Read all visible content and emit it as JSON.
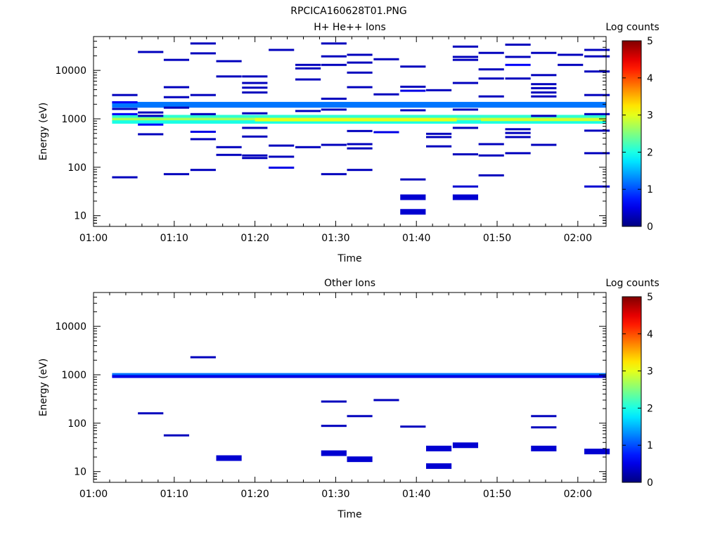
{
  "figure_title": "RPCICA160628T01.PNG",
  "chart_data": [
    {
      "type": "heatmap",
      "title": "H+ He++ Ions",
      "xlabel": "Time",
      "ylabel": "Energy (eV)",
      "x_ticks": [
        "01:00",
        "01:10",
        "01:20",
        "01:30",
        "01:40",
        "01:50",
        "02:00"
      ],
      "xlim_minutes": [
        0,
        63.5
      ],
      "ylim": [
        6,
        50000
      ],
      "y_scale": "log",
      "y_ticks": [
        "10",
        "100",
        "1000",
        "10000"
      ],
      "colorbar": {
        "label": "Log counts",
        "range": [
          0,
          5
        ],
        "ticks": [
          "0",
          "1",
          "2",
          "3",
          "4",
          "5"
        ]
      },
      "bands": [
        {
          "t0": 2.3,
          "t1": 63.5,
          "e": 1950,
          "h": 0.06,
          "level": 1.2
        },
        {
          "t0": 2.3,
          "t1": 63.5,
          "e": 1100,
          "h": 0.04,
          "level": 2.1
        },
        {
          "t0": 2.3,
          "t1": 63.5,
          "e": 960,
          "h": 0.04,
          "level": 2.7
        },
        {
          "t0": 2.3,
          "t1": 63.5,
          "e": 860,
          "h": 0.035,
          "level": 2.0
        },
        {
          "t0": 20,
          "t1": 45,
          "e": 960,
          "h": 0.035,
          "level": 3.0
        },
        {
          "t0": 48,
          "t1": 63.5,
          "e": 960,
          "h": 0.03,
          "level": 2.9
        }
      ],
      "points": [
        {
          "t": 2.3,
          "e": 62,
          "level": 0
        },
        {
          "t": 2.3,
          "e": 1600,
          "level": 0
        },
        {
          "t": 2.3,
          "e": 1250,
          "level": 0.3
        },
        {
          "t": 2.3,
          "e": 3100,
          "level": 0
        },
        {
          "t": 2.3,
          "e": 2200,
          "level": 0.3
        },
        {
          "t": 5.5,
          "e": 24000,
          "level": 0
        },
        {
          "t": 5.5,
          "e": 1350,
          "level": 0
        },
        {
          "t": 5.5,
          "e": 1150,
          "level": 0
        },
        {
          "t": 5.5,
          "e": 760,
          "level": 0.3
        },
        {
          "t": 5.5,
          "e": 480,
          "level": 0
        },
        {
          "t": 8.7,
          "e": 16500,
          "level": 0
        },
        {
          "t": 8.7,
          "e": 4500,
          "level": 0
        },
        {
          "t": 8.7,
          "e": 2800,
          "level": 0
        },
        {
          "t": 8.7,
          "e": 1700,
          "level": 0
        },
        {
          "t": 8.7,
          "e": 72,
          "level": 0
        },
        {
          "t": 12,
          "e": 36000,
          "level": 0
        },
        {
          "t": 12,
          "e": 22500,
          "level": 0
        },
        {
          "t": 12,
          "e": 3100,
          "level": 0
        },
        {
          "t": 12,
          "e": 1250,
          "level": 0
        },
        {
          "t": 12,
          "e": 540,
          "level": 0.2
        },
        {
          "t": 12,
          "e": 380,
          "level": 0
        },
        {
          "t": 12,
          "e": 88,
          "level": 0
        },
        {
          "t": 15.2,
          "e": 15500,
          "level": 0
        },
        {
          "t": 15.2,
          "e": 7500,
          "level": 0
        },
        {
          "t": 15.2,
          "e": 260,
          "level": 0
        },
        {
          "t": 15.2,
          "e": 180,
          "level": 0
        },
        {
          "t": 18.4,
          "e": 7500,
          "level": 0
        },
        {
          "t": 18.4,
          "e": 5500,
          "level": 0
        },
        {
          "t": 18.4,
          "e": 4400,
          "level": 0
        },
        {
          "t": 18.4,
          "e": 3500,
          "level": 0
        },
        {
          "t": 18.4,
          "e": 1300,
          "level": 0
        },
        {
          "t": 18.4,
          "e": 650,
          "level": 0
        },
        {
          "t": 18.4,
          "e": 430,
          "level": 0
        },
        {
          "t": 18.4,
          "e": 175,
          "level": 0
        },
        {
          "t": 18.4,
          "e": 155,
          "level": 0
        },
        {
          "t": 21.7,
          "e": 26500,
          "level": 0
        },
        {
          "t": 21.7,
          "e": 280,
          "level": 0
        },
        {
          "t": 21.7,
          "e": 165,
          "level": 0
        },
        {
          "t": 21.7,
          "e": 98,
          "level": 0.2
        },
        {
          "t": 25,
          "e": 13000,
          "level": 0
        },
        {
          "t": 25,
          "e": 11000,
          "level": 0
        },
        {
          "t": 25,
          "e": 6500,
          "level": 0
        },
        {
          "t": 25,
          "e": 1450,
          "level": 0
        },
        {
          "t": 25,
          "e": 260,
          "level": 0
        },
        {
          "t": 28.2,
          "e": 36000,
          "level": 0
        },
        {
          "t": 28.2,
          "e": 19500,
          "level": 0
        },
        {
          "t": 28.2,
          "e": 13000,
          "level": 0
        },
        {
          "t": 28.2,
          "e": 2600,
          "level": 0
        },
        {
          "t": 28.2,
          "e": 1550,
          "level": 0
        },
        {
          "t": 28.2,
          "e": 290,
          "level": 0
        },
        {
          "t": 28.2,
          "e": 72,
          "level": 0
        },
        {
          "t": 31.4,
          "e": 21000,
          "level": 0
        },
        {
          "t": 31.4,
          "e": 14500,
          "level": 0
        },
        {
          "t": 31.4,
          "e": 9000,
          "level": 0
        },
        {
          "t": 31.4,
          "e": 4500,
          "level": 0
        },
        {
          "t": 31.4,
          "e": 560,
          "level": 0
        },
        {
          "t": 31.4,
          "e": 300,
          "level": 0
        },
        {
          "t": 31.4,
          "e": 245,
          "level": 0
        },
        {
          "t": 31.4,
          "e": 88,
          "level": 0
        },
        {
          "t": 34.7,
          "e": 17000,
          "level": 0
        },
        {
          "t": 34.7,
          "e": 3200,
          "level": 0
        },
        {
          "t": 34.7,
          "e": 530,
          "level": 0.2
        },
        {
          "t": 38,
          "e": 12000,
          "level": 0
        },
        {
          "t": 38,
          "e": 4600,
          "level": 0
        },
        {
          "t": 38,
          "e": 3800,
          "level": 0.2
        },
        {
          "t": 38,
          "e": 1500,
          "level": 0
        },
        {
          "t": 38,
          "e": 56,
          "level": 0
        },
        {
          "t": 38,
          "e": 24,
          "level": 0.1
        },
        {
          "t": 38,
          "e": 12,
          "level": 0.1
        },
        {
          "t": 41.2,
          "e": 3900,
          "level": 0
        },
        {
          "t": 41.2,
          "e": 490,
          "level": 0
        },
        {
          "t": 41.2,
          "e": 420,
          "level": 0
        },
        {
          "t": 41.2,
          "e": 270,
          "level": 0
        },
        {
          "t": 44.5,
          "e": 31000,
          "level": 0
        },
        {
          "t": 44.5,
          "e": 19000,
          "level": 0
        },
        {
          "t": 44.5,
          "e": 16500,
          "level": 0
        },
        {
          "t": 44.5,
          "e": 5500,
          "level": 0
        },
        {
          "t": 44.5,
          "e": 1550,
          "level": 0
        },
        {
          "t": 44.5,
          "e": 650,
          "level": 0
        },
        {
          "t": 44.5,
          "e": 185,
          "level": 0
        },
        {
          "t": 44.5,
          "e": 40,
          "level": 0.1
        },
        {
          "t": 44.5,
          "e": 24,
          "level": 0.1
        },
        {
          "t": 47.7,
          "e": 23000,
          "level": 0
        },
        {
          "t": 47.7,
          "e": 10500,
          "level": 0
        },
        {
          "t": 47.7,
          "e": 6800,
          "level": 0
        },
        {
          "t": 47.7,
          "e": 2900,
          "level": 0
        },
        {
          "t": 47.7,
          "e": 300,
          "level": 0
        },
        {
          "t": 47.7,
          "e": 175,
          "level": 0
        },
        {
          "t": 47.7,
          "e": 68,
          "level": 0
        },
        {
          "t": 51,
          "e": 34000,
          "level": 0
        },
        {
          "t": 51,
          "e": 19000,
          "level": 0
        },
        {
          "t": 51,
          "e": 13000,
          "level": 0.3
        },
        {
          "t": 51,
          "e": 6800,
          "level": 0
        },
        {
          "t": 51,
          "e": 610,
          "level": 0
        },
        {
          "t": 51,
          "e": 510,
          "level": 0
        },
        {
          "t": 51,
          "e": 420,
          "level": 0
        },
        {
          "t": 51,
          "e": 195,
          "level": 0
        },
        {
          "t": 54.2,
          "e": 23000,
          "level": 0
        },
        {
          "t": 54.2,
          "e": 8000,
          "level": 0
        },
        {
          "t": 54.2,
          "e": 5200,
          "level": 0
        },
        {
          "t": 54.2,
          "e": 4300,
          "level": 0
        },
        {
          "t": 54.2,
          "e": 3500,
          "level": 0
        },
        {
          "t": 54.2,
          "e": 2900,
          "level": 0
        },
        {
          "t": 54.2,
          "e": 1150,
          "level": 0
        },
        {
          "t": 54.2,
          "e": 290,
          "level": 0
        },
        {
          "t": 57.5,
          "e": 21000,
          "level": 0
        },
        {
          "t": 57.5,
          "e": 13000,
          "level": 0
        },
        {
          "t": 60.8,
          "e": 26500,
          "level": 0
        },
        {
          "t": 60.8,
          "e": 19500,
          "level": 0
        },
        {
          "t": 60.8,
          "e": 9500,
          "level": 0
        },
        {
          "t": 60.8,
          "e": 3100,
          "level": 0
        },
        {
          "t": 60.8,
          "e": 1250,
          "level": 0
        },
        {
          "t": 60.8,
          "e": 570,
          "level": 0
        },
        {
          "t": 60.8,
          "e": 195,
          "level": 0
        },
        {
          "t": 60.8,
          "e": 40,
          "level": 0.1
        }
      ]
    },
    {
      "type": "heatmap",
      "title": "Other Ions",
      "xlabel": "Time",
      "ylabel": "Energy (eV)",
      "x_ticks": [
        "01:00",
        "01:10",
        "01:20",
        "01:30",
        "01:40",
        "01:50",
        "02:00"
      ],
      "xlim_minutes": [
        0,
        63.5
      ],
      "ylim": [
        6,
        50000
      ],
      "y_scale": "log",
      "y_ticks": [
        "10",
        "100",
        "1000",
        "10000"
      ],
      "colorbar": {
        "label": "Log counts",
        "range": [
          0,
          5
        ],
        "ticks": [
          "0",
          "1",
          "2",
          "3",
          "4",
          "5"
        ]
      },
      "bands": [
        {
          "t0": 2.3,
          "t1": 63.5,
          "e": 1000,
          "h": 0.035,
          "level": 1.2
        },
        {
          "t0": 2.3,
          "t1": 63.5,
          "e": 920,
          "h": 0.03,
          "level": 0.5
        }
      ],
      "points": [
        {
          "t": 5.5,
          "e": 160,
          "level": 0
        },
        {
          "t": 8.7,
          "e": 56,
          "level": 0
        },
        {
          "t": 12,
          "e": 2300,
          "level": 0
        },
        {
          "t": 15.2,
          "e": 19,
          "level": 0.1
        },
        {
          "t": 28.2,
          "e": 280,
          "level": 0
        },
        {
          "t": 28.2,
          "e": 88,
          "level": 0
        },
        {
          "t": 28.2,
          "e": 24,
          "level": 0.1
        },
        {
          "t": 31.4,
          "e": 140,
          "level": 0
        },
        {
          "t": 31.4,
          "e": 18,
          "level": 0.1
        },
        {
          "t": 34.7,
          "e": 300,
          "level": 0
        },
        {
          "t": 38,
          "e": 85,
          "level": 0
        },
        {
          "t": 41.2,
          "e": 30,
          "level": 0.1
        },
        {
          "t": 41.2,
          "e": 13,
          "level": 0.1
        },
        {
          "t": 44.5,
          "e": 35,
          "level": 0.1
        },
        {
          "t": 54.2,
          "e": 140,
          "level": 0
        },
        {
          "t": 54.2,
          "e": 82,
          "level": 0
        },
        {
          "t": 54.2,
          "e": 30,
          "level": 0.1
        },
        {
          "t": 60.8,
          "e": 26,
          "level": 0.1
        }
      ]
    }
  ]
}
